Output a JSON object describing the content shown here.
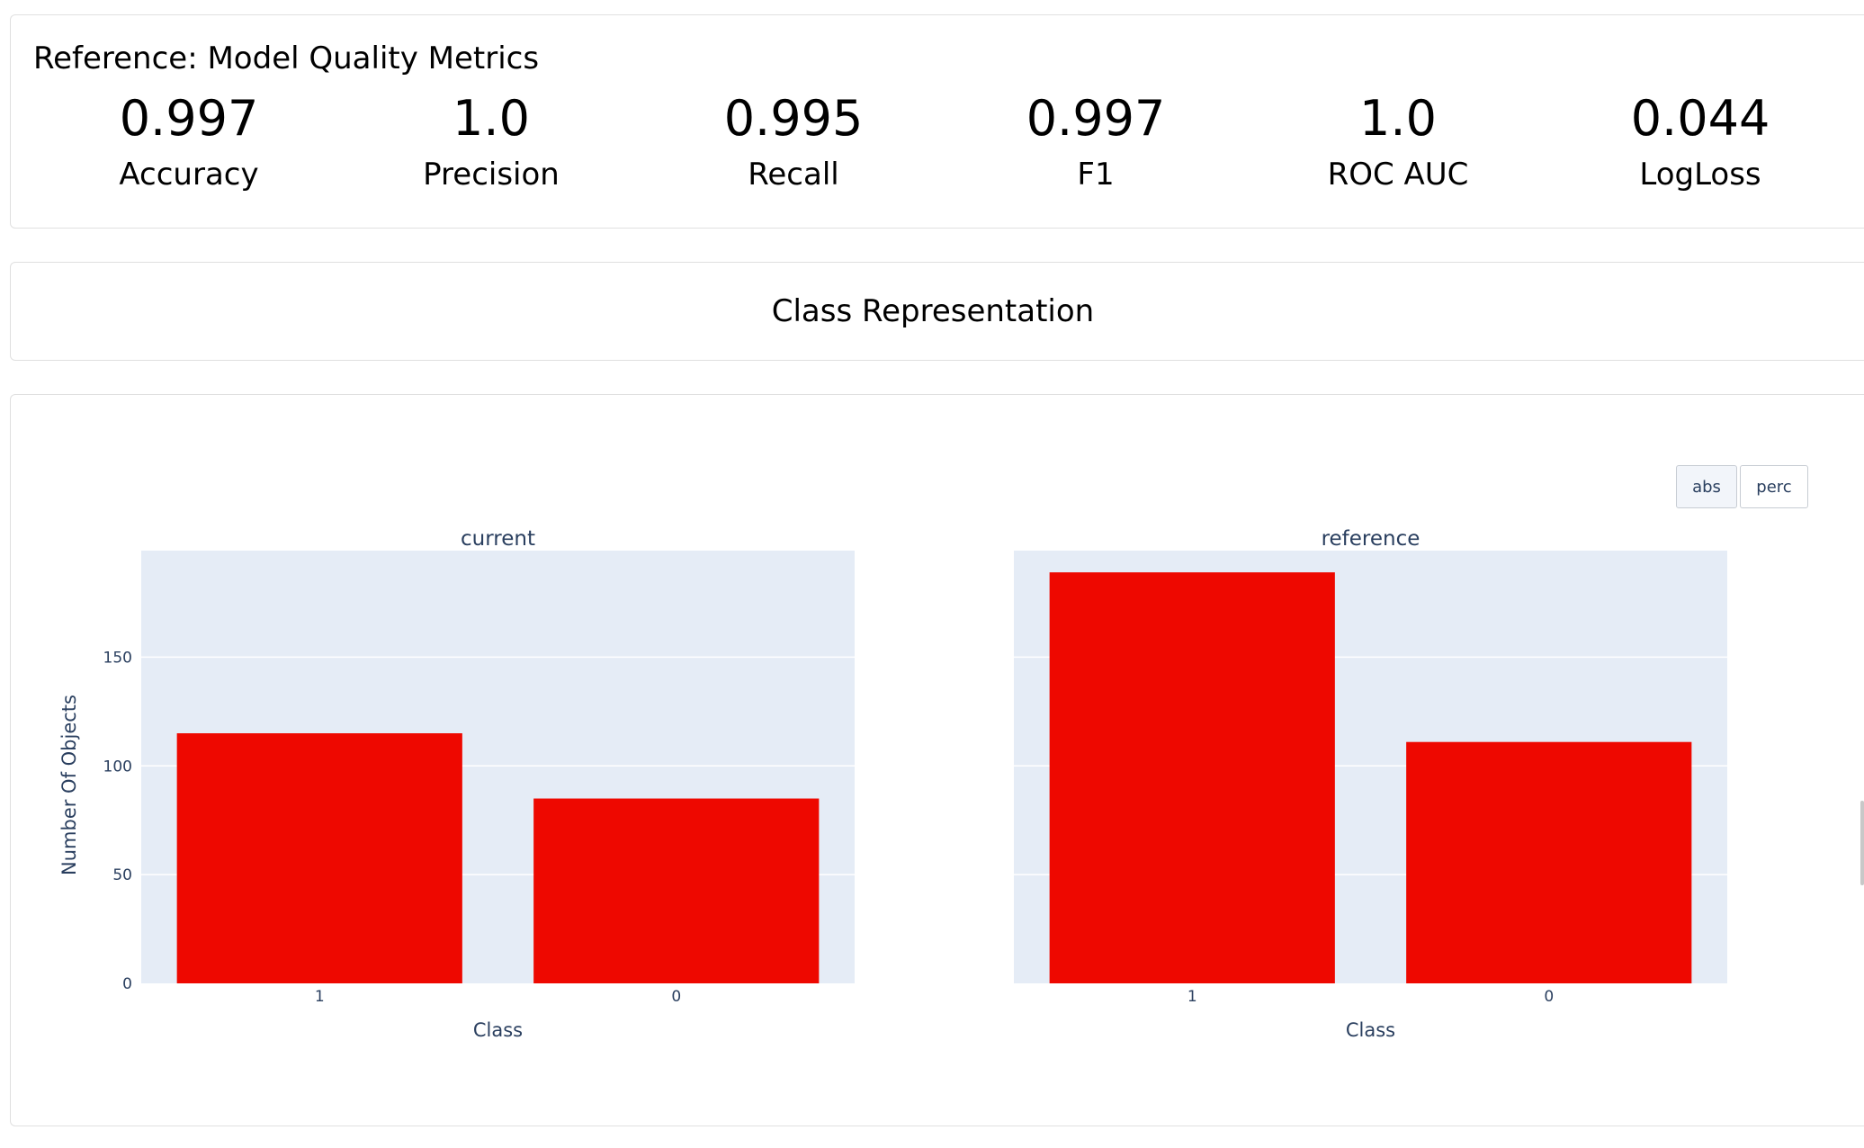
{
  "metrics": {
    "title": "Reference: Model Quality Metrics",
    "items": [
      {
        "value": "0.997",
        "label": "Accuracy"
      },
      {
        "value": "1.0",
        "label": "Precision"
      },
      {
        "value": "0.995",
        "label": "Recall"
      },
      {
        "value": "0.997",
        "label": "F1"
      },
      {
        "value": "1.0",
        "label": "ROC AUC"
      },
      {
        "value": "0.044",
        "label": "LogLoss"
      }
    ]
  },
  "class_representation": {
    "title": "Class Representation"
  },
  "toggle": {
    "abs_label": "abs",
    "perc_label": "perc",
    "active": "abs"
  },
  "colors": {
    "bar": "#ee0800",
    "plot_bg": "#e5ecf6",
    "axis_text": "#2a3f5f"
  },
  "chart_data": [
    {
      "type": "bar",
      "title": "current",
      "categories": [
        "1",
        "0"
      ],
      "values": [
        115,
        85
      ],
      "xlabel": "Class",
      "ylabel": "Number Of Objects",
      "ylim": [
        0,
        199
      ],
      "yticks": [
        0,
        50,
        100,
        150
      ]
    },
    {
      "type": "bar",
      "title": "reference",
      "categories": [
        "1",
        "0"
      ],
      "values": [
        189,
        111
      ],
      "xlabel": "Class",
      "ylabel": "",
      "ylim": [
        0,
        199
      ],
      "yticks": [
        0,
        50,
        100,
        150
      ]
    }
  ]
}
